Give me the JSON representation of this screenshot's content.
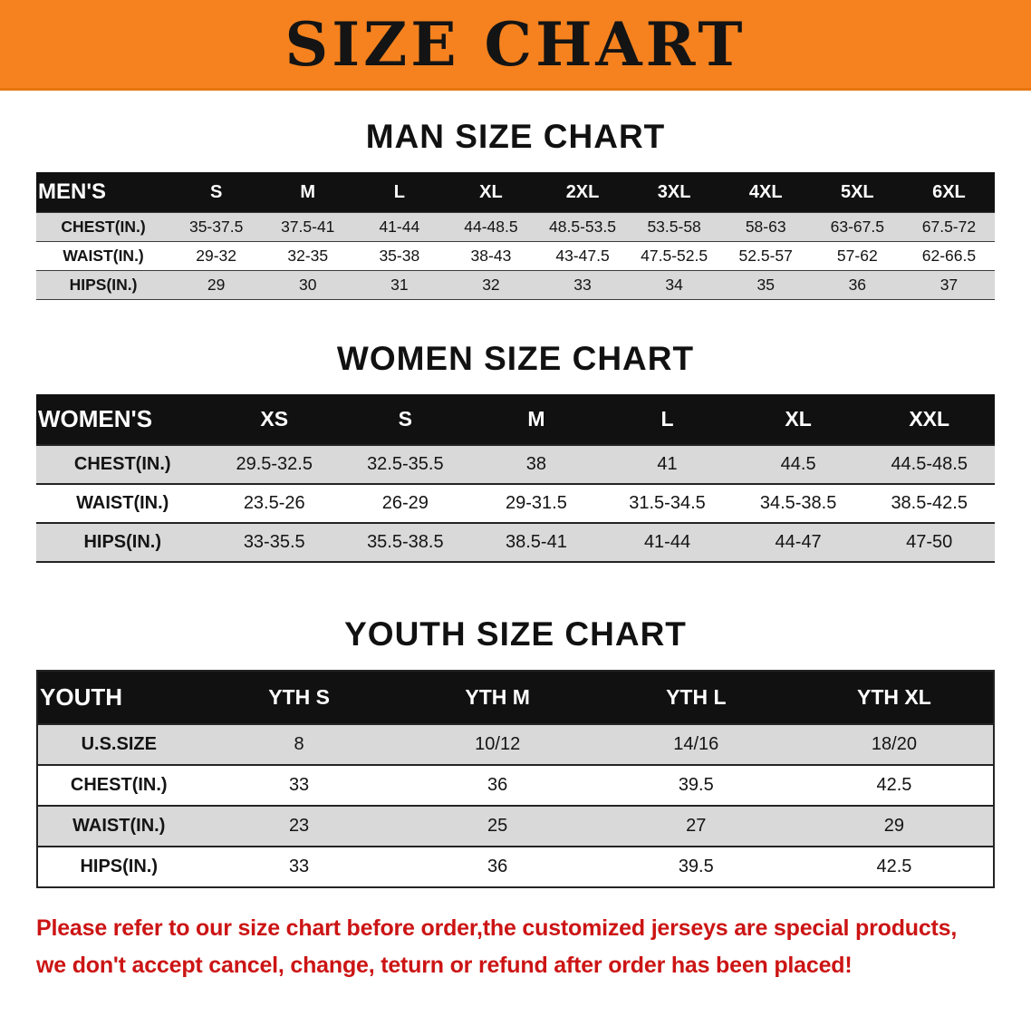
{
  "banner": {
    "title": "SIZE CHART"
  },
  "sections": [
    {
      "heading": "MAN SIZE CHART",
      "table_name": "mens-size-table",
      "header": [
        "MEN'S",
        "S",
        "M",
        "L",
        "XL",
        "2XL",
        "3XL",
        "4XL",
        "5XL",
        "6XL"
      ],
      "rows": [
        {
          "label": "CHEST(IN.)",
          "values": [
            "35-37.5",
            "37.5-41",
            "41-44",
            "44-48.5",
            "48.5-53.5",
            "53.5-58",
            "58-63",
            "63-67.5",
            "67.5-72"
          ]
        },
        {
          "label": "WAIST(IN.)",
          "values": [
            "29-32",
            "32-35",
            "35-38",
            "38-43",
            "43-47.5",
            "47.5-52.5",
            "52.5-57",
            "57-62",
            "62-66.5"
          ]
        },
        {
          "label": "HIPS(IN.)",
          "values": [
            "29",
            "30",
            "31",
            "32",
            "33",
            "34",
            "35",
            "36",
            "37"
          ]
        }
      ]
    },
    {
      "heading": "WOMEN SIZE CHART",
      "table_name": "womens-size-table",
      "header": [
        "WOMEN'S",
        "XS",
        "S",
        "M",
        "L",
        "XL",
        "XXL"
      ],
      "rows": [
        {
          "label": "CHEST(IN.)",
          "values": [
            "29.5-32.5",
            "32.5-35.5",
            "38",
            "41",
            "44.5",
            "44.5-48.5"
          ]
        },
        {
          "label": "WAIST(IN.)",
          "values": [
            "23.5-26",
            "26-29",
            "29-31.5",
            "31.5-34.5",
            "34.5-38.5",
            "38.5-42.5"
          ]
        },
        {
          "label": "HIPS(IN.)",
          "values": [
            "33-35.5",
            "35.5-38.5",
            "38.5-41",
            "41-44",
            "44-47",
            "47-50"
          ]
        }
      ]
    },
    {
      "heading": "YOUTH SIZE CHART",
      "table_name": "youth-size-table",
      "header": [
        "YOUTH",
        "YTH S",
        "YTH M",
        "YTH L",
        "YTH XL"
      ],
      "rows": [
        {
          "label": "U.S.SIZE",
          "values": [
            "8",
            "10/12",
            "14/16",
            "18/20"
          ]
        },
        {
          "label": "CHEST(IN.)",
          "values": [
            "33",
            "36",
            "39.5",
            "42.5"
          ]
        },
        {
          "label": "WAIST(IN.)",
          "values": [
            "23",
            "25",
            "27",
            "29"
          ]
        },
        {
          "label": "HIPS(IN.)",
          "values": [
            "33",
            "36",
            "39.5",
            "42.5"
          ]
        }
      ]
    }
  ],
  "footer": {
    "line1": "Please refer to our size chart before order,the customized jerseys are special products,",
    "line2": "we don't accept cancel, change, teturn or refund after order has been placed!"
  },
  "colors": {
    "banner_bg": "#f5821f",
    "header_bg": "#111111",
    "row_alt_bg": "#d9d9d9",
    "footer_text": "#cc1414"
  }
}
